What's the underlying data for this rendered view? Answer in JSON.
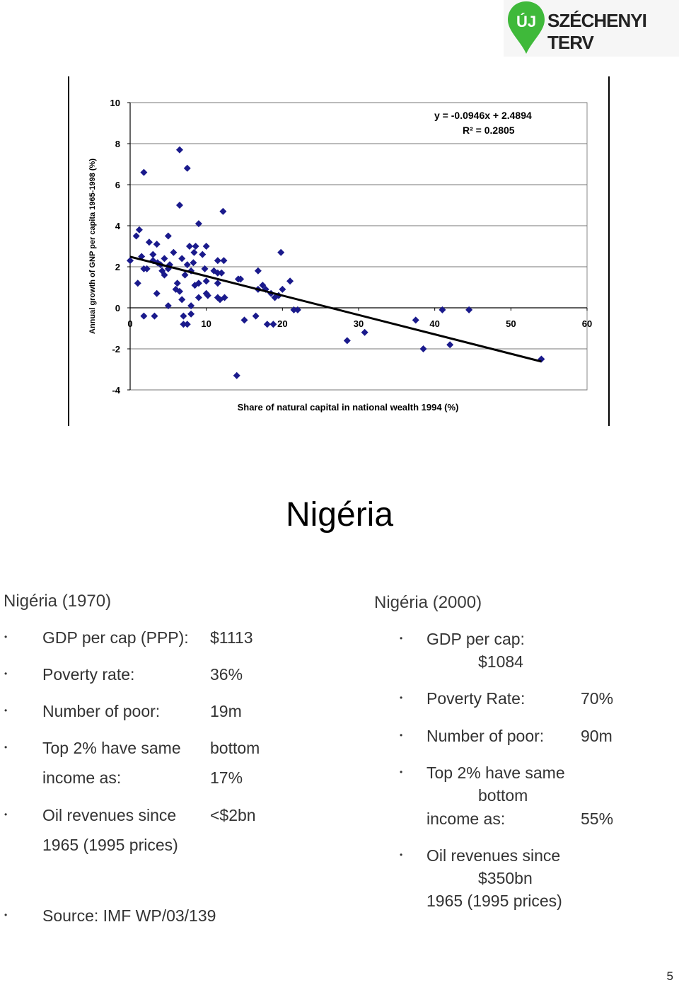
{
  "logo": {
    "pin_text": "ÚJ",
    "brand": "SZÉCHENYI TERV"
  },
  "chart_data": {
    "type": "scatter",
    "xlabel": "Share of natural capital in national wealth 1994 (%)",
    "ylabel": "Annual growth of GNP per capita 1965-1998 (%)",
    "xlim": [
      0,
      60
    ],
    "ylim": [
      -4,
      10
    ],
    "xticks": [
      "0",
      "10",
      "20",
      "30",
      "40",
      "50",
      "60"
    ],
    "yticks": [
      "10",
      "8",
      "6",
      "4",
      "2",
      "0",
      "-2",
      "-4"
    ],
    "grid": "horizontal",
    "equation": "y = -0.0946x + 2.4894",
    "r_squared": "R² = 0.2805",
    "trendline": {
      "slope": -0.0946,
      "intercept": 2.4894,
      "x_range": [
        0,
        54
      ]
    },
    "points": [
      [
        0,
        2.3
      ],
      [
        0.8,
        3.5
      ],
      [
        1.2,
        3.8
      ],
      [
        1.5,
        2.5
      ],
      [
        1.8,
        6.6
      ],
      [
        1.8,
        1.9
      ],
      [
        2.2,
        1.9
      ],
      [
        1,
        1.2
      ],
      [
        1.8,
        -0.4
      ],
      [
        2.5,
        3.2
      ],
      [
        3,
        2.6
      ],
      [
        3,
        2.3
      ],
      [
        3.2,
        -0.4
      ],
      [
        3.5,
        0.7
      ],
      [
        3.6,
        2.2
      ],
      [
        3.5,
        3.1
      ],
      [
        4,
        2.1
      ],
      [
        4.2,
        1.8
      ],
      [
        4.5,
        2.4
      ],
      [
        4.5,
        1.6
      ],
      [
        5,
        3.5
      ],
      [
        5,
        1.9
      ],
      [
        5.2,
        2.1
      ],
      [
        5,
        0.1
      ],
      [
        5.7,
        2.7
      ],
      [
        6,
        0.9
      ],
      [
        6.2,
        1.2
      ],
      [
        6.5,
        7.7
      ],
      [
        6.5,
        5.0
      ],
      [
        6.5,
        0.8
      ],
      [
        6.8,
        2.4
      ],
      [
        6.8,
        0.4
      ],
      [
        7,
        -0.4
      ],
      [
        7,
        -0.8
      ],
      [
        7.2,
        1.6
      ],
      [
        7.5,
        6.8
      ],
      [
        7.5,
        2.1
      ],
      [
        7.5,
        -0.8
      ],
      [
        7.8,
        3.0
      ],
      [
        8,
        1.8
      ],
      [
        8,
        0.1
      ],
      [
        8,
        -0.3
      ],
      [
        8.3,
        2.2
      ],
      [
        8.4,
        2.7
      ],
      [
        8.5,
        1.1
      ],
      [
        8.6,
        3.0
      ],
      [
        9,
        1.2
      ],
      [
        9,
        0.5
      ],
      [
        9,
        4.1
      ],
      [
        9.5,
        2.6
      ],
      [
        9.8,
        1.9
      ],
      [
        10,
        3.0
      ],
      [
        10,
        0.7
      ],
      [
        10.2,
        0.6
      ],
      [
        10,
        1.3
      ],
      [
        11,
        1.8
      ],
      [
        11.5,
        2.3
      ],
      [
        11.5,
        1.7
      ],
      [
        11.5,
        1.2
      ],
      [
        11.5,
        0.5
      ],
      [
        11.8,
        0.4
      ],
      [
        12,
        1.7
      ],
      [
        12.2,
        4.7
      ],
      [
        12.3,
        2.3
      ],
      [
        12.4,
        0.5
      ],
      [
        14,
        -3.3
      ],
      [
        14.2,
        1.4
      ],
      [
        14.5,
        1.4
      ],
      [
        15,
        -0.6
      ],
      [
        16.5,
        -0.4
      ],
      [
        16.8,
        1.8
      ],
      [
        16.8,
        0.9
      ],
      [
        17.4,
        1.1
      ],
      [
        17.8,
        0.9
      ],
      [
        18,
        -0.8
      ],
      [
        18.5,
        0.7
      ],
      [
        18.8,
        -0.8
      ],
      [
        19,
        0.5
      ],
      [
        19.5,
        0.6
      ],
      [
        19.8,
        2.7
      ],
      [
        20,
        0.9
      ],
      [
        21,
        1.3
      ],
      [
        21.5,
        -0.1
      ],
      [
        22,
        -0.1
      ],
      [
        28.5,
        -1.6
      ],
      [
        30.8,
        -1.2
      ],
      [
        37.5,
        -0.6
      ],
      [
        38.5,
        -2.0
      ],
      [
        41,
        -0.1
      ],
      [
        42,
        -1.8
      ],
      [
        44.5,
        -0.1
      ],
      [
        54,
        -2.5
      ]
    ]
  },
  "title": "Nigéria",
  "left": {
    "heading": "Nigéria (1970)",
    "bullet": "•",
    "items": [
      {
        "label": "GDP per cap (PPP):",
        "value": "$1113"
      },
      {
        "label": "Poverty rate:",
        "value": "36%"
      },
      {
        "label": "Number of poor:",
        "value": "19m"
      },
      {
        "label": "Top 2% have same",
        "value": "bottom",
        "label2": "income as:",
        "value2": "17%"
      },
      {
        "label": "Oil revenues since",
        "value": "<$2bn",
        "label2": "1965 (1995 prices)"
      },
      {
        "label": "Source: IMF WP/03/139"
      }
    ]
  },
  "right": {
    "heading": "Nigéria (2000)",
    "bullet": "•",
    "items": [
      {
        "label": "GDP per cap:",
        "line2": "$1084"
      },
      {
        "label": "Poverty Rate:",
        "value": "70%"
      },
      {
        "label": "Number of poor:",
        "value": "90m"
      },
      {
        "label": "Top 2% have same",
        "line2": "bottom",
        "line3": "income as:",
        "value": "55%"
      },
      {
        "label": "Oil revenues since",
        "line2": "$350bn",
        "line3": "1965 (1995 prices)"
      }
    ]
  },
  "page_number": "5"
}
